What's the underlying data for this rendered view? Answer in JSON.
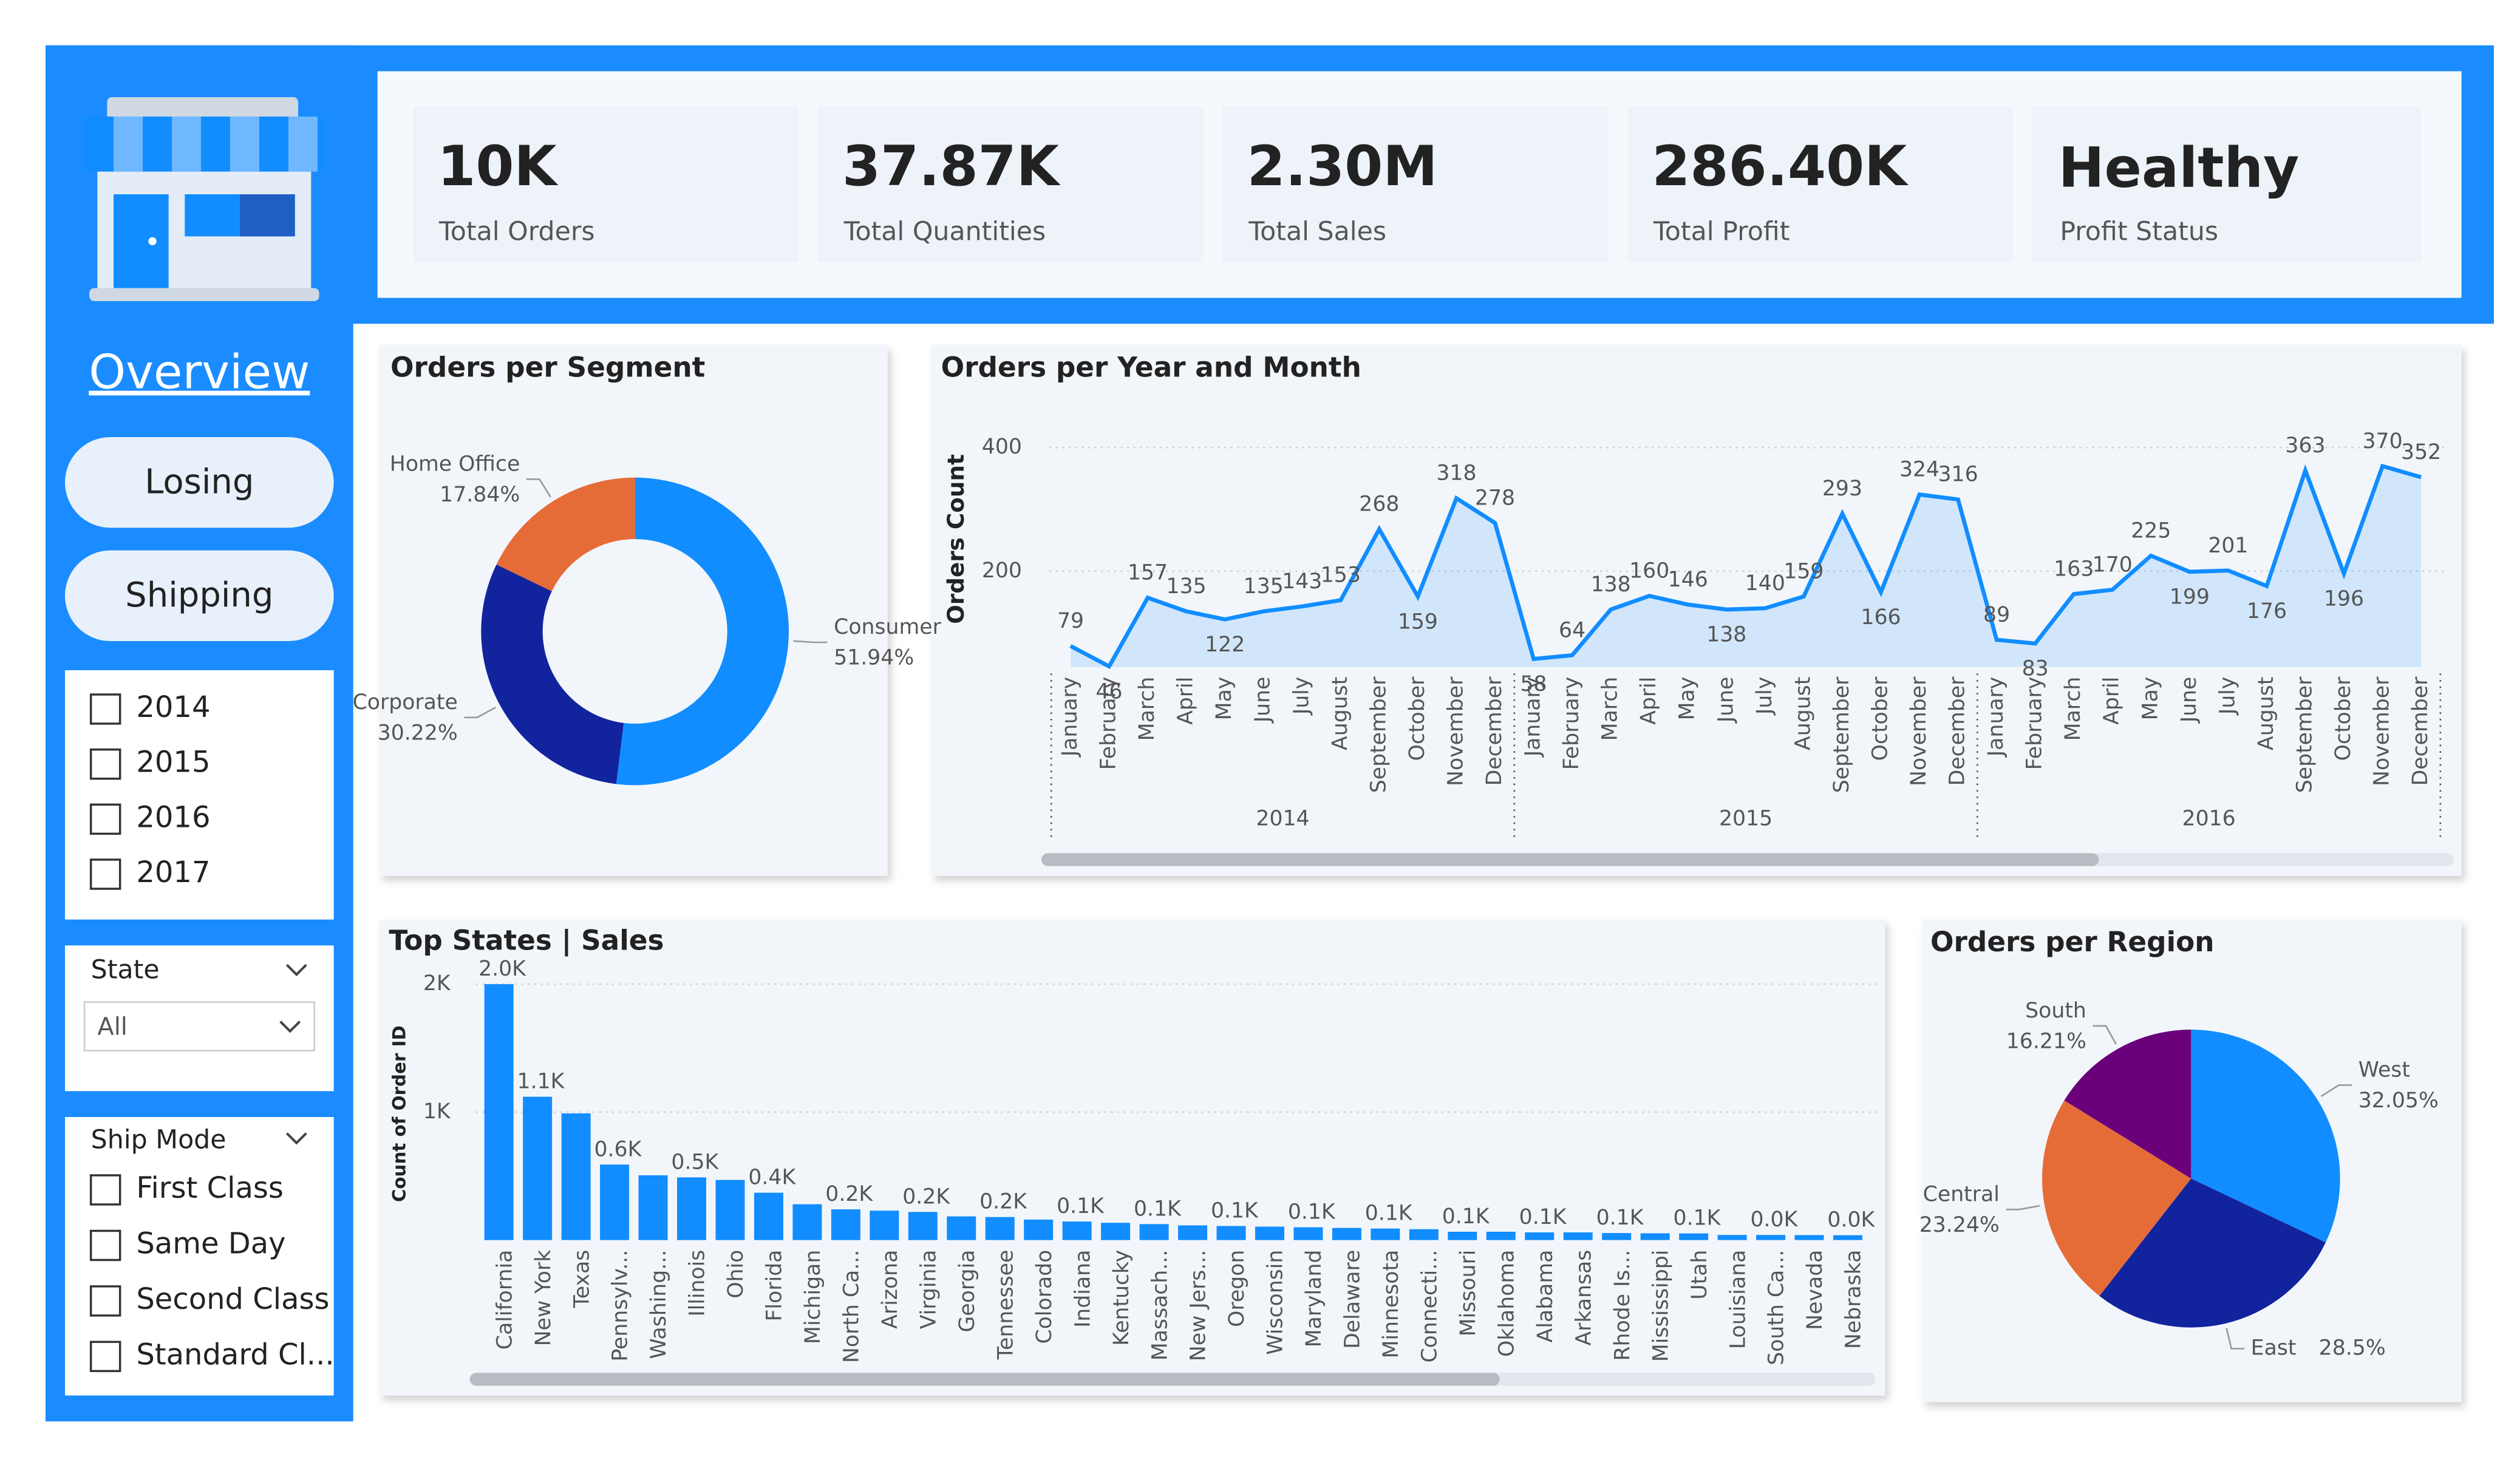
{
  "kpis": [
    {
      "value": "10K",
      "label": "Total Orders"
    },
    {
      "value": "37.87K",
      "label": "Total Quantities"
    },
    {
      "value": "2.30M",
      "label": "Total Sales"
    },
    {
      "value": "286.40K",
      "label": "Total Profit"
    },
    {
      "value": "Healthy",
      "label": "Profit Status"
    }
  ],
  "nav": {
    "current": "Overview",
    "buttons": [
      "Losing",
      "Shipping"
    ]
  },
  "year_filter": [
    "2014",
    "2015",
    "2016",
    "2017"
  ],
  "state_filter": {
    "title": "State",
    "selected": "All"
  },
  "ship_mode_filter": {
    "title": "Ship Mode",
    "options": [
      "First Class",
      "Same Day",
      "Second Class",
      "Standard Cl..."
    ]
  },
  "chart_data": [
    {
      "type": "donut",
      "title": "Orders per Segment",
      "categories": [
        "Consumer",
        "Corporate",
        "Home Office"
      ],
      "values": [
        51.94,
        30.22,
        17.84
      ],
      "value_labels": [
        "51.94%",
        "30.22%",
        "17.84%"
      ],
      "colors": [
        "#118dff",
        "#12239e",
        "#e66c37"
      ]
    },
    {
      "type": "line",
      "title": "Orders per Year and Month",
      "y_label": "Orders Count",
      "categories": [
        "January",
        "February",
        "March",
        "April",
        "May",
        "June",
        "July",
        "August",
        "September",
        "October",
        "November",
        "December",
        "January",
        "February",
        "March",
        "April",
        "May",
        "June",
        "July",
        "August",
        "September",
        "October",
        "November",
        "December",
        "January",
        "February",
        "March",
        "April",
        "May",
        "June",
        "July",
        "August",
        "September",
        "October",
        "November",
        "December"
      ],
      "year_groups": [
        "2014",
        "2015",
        "2016"
      ],
      "values": [
        79,
        46,
        157,
        135,
        122,
        135,
        143,
        153,
        268,
        159,
        318,
        278,
        58,
        64,
        138,
        160,
        146,
        138,
        140,
        159,
        293,
        166,
        324,
        316,
        89,
        83,
        163,
        170,
        225,
        199,
        201,
        176,
        363,
        196,
        370,
        352
      ],
      "color": "#118dff",
      "ylim": [
        45,
        430
      ],
      "yticks": [
        200,
        400
      ],
      "grid": true
    },
    {
      "type": "bar",
      "title": "Top States | Sales",
      "y_label": "Count of Order ID",
      "categories": [
        "California",
        "New York",
        "Texas",
        "Pennsylv...",
        "Washing...",
        "Illinois",
        "Ohio",
        "Florida",
        "Michigan",
        "North Ca...",
        "Arizona",
        "Virginia",
        "Georgia",
        "Tennessee",
        "Colorado",
        "Indiana",
        "Kentucky",
        "Massach...",
        "New Jers...",
        "Oregon",
        "Wisconsin",
        "Maryland",
        "Delaware",
        "Minnesota",
        "Connecti...",
        "Missouri",
        "Oklahoma",
        "Alabama",
        "Arkansas",
        "Rhode Is...",
        "Mississippi",
        "Utah",
        "Louisiana",
        "South Ca...",
        "Nevada",
        "Nebraska"
      ],
      "values": [
        2000,
        1120,
        990,
        590,
        506,
        490,
        470,
        370,
        280,
        240,
        230,
        220,
        185,
        180,
        160,
        145,
        135,
        125,
        115,
        110,
        105,
        100,
        95,
        90,
        85,
        65,
        65,
        60,
        60,
        55,
        53,
        52,
        40,
        40,
        39,
        38
      ],
      "value_labels": [
        "2.0K",
        "1.1K",
        null,
        "0.6K",
        null,
        "0.5K",
        null,
        "0.4K",
        null,
        "0.2K",
        null,
        "0.2K",
        null,
        "0.2K",
        null,
        "0.1K",
        null,
        "0.1K",
        null,
        "0.1K",
        null,
        "0.1K",
        null,
        "0.1K",
        null,
        "0.1K",
        null,
        "0.1K",
        null,
        "0.1K",
        null,
        "0.1K",
        null,
        "0.0K",
        null,
        "0.0K"
      ],
      "color": "#118dff",
      "ylim": [
        0,
        2100
      ],
      "yticks": [
        {
          "value": 1000,
          "label": "1K"
        },
        {
          "value": 2000,
          "label": "2K"
        }
      ],
      "grid": true
    },
    {
      "type": "pie",
      "title": "Orders per Region",
      "categories": [
        "West",
        "East",
        "Central",
        "South"
      ],
      "values": [
        32.05,
        28.5,
        23.24,
        16.21
      ],
      "value_labels": [
        "32.05%",
        "28.5%",
        "23.24%",
        "16.21%"
      ],
      "colors": [
        "#118dff",
        "#12239e",
        "#e66c37",
        "#6b007b"
      ]
    }
  ]
}
